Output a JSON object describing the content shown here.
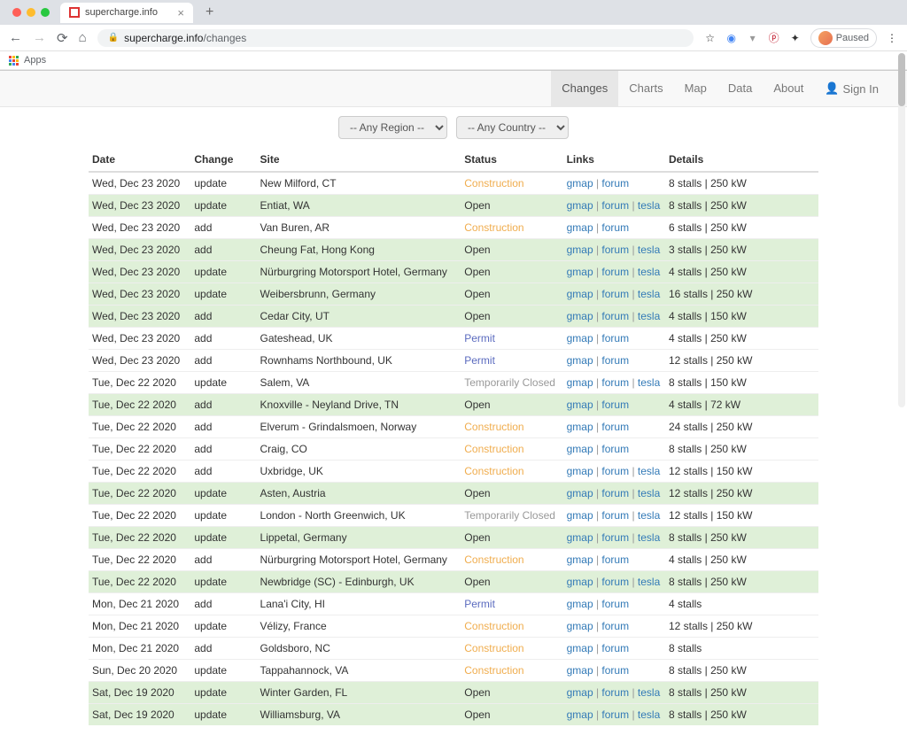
{
  "browser": {
    "tab_title": "supercharge.info",
    "url_host": "supercharge.info",
    "url_path": "/changes",
    "bookmarks_apps": "Apps",
    "paused_label": "Paused"
  },
  "nav": {
    "changes": "Changes",
    "charts": "Charts",
    "map": "Map",
    "data": "Data",
    "about": "About",
    "signin": "Sign In"
  },
  "filters": {
    "region_placeholder": "-- Any Region --",
    "country_placeholder": "-- Any Country --"
  },
  "columns": {
    "date": "Date",
    "change": "Change",
    "site": "Site",
    "status": "Status",
    "links": "Links",
    "details": "Details"
  },
  "link_labels": {
    "gmap": "gmap",
    "forum": "forum",
    "tesla": "tesla"
  },
  "rows": [
    {
      "hl": false,
      "date": "Wed, Dec 23 2020",
      "change": "update",
      "site": "New Milford, CT",
      "status": "Construction",
      "status_class": "construction",
      "links": [
        "gmap",
        "forum"
      ],
      "details": "8 stalls | 250 kW"
    },
    {
      "hl": true,
      "date": "Wed, Dec 23 2020",
      "change": "update",
      "site": "Entiat, WA",
      "status": "Open",
      "status_class": "open",
      "links": [
        "gmap",
        "forum",
        "tesla"
      ],
      "details": "8 stalls | 250 kW"
    },
    {
      "hl": false,
      "date": "Wed, Dec 23 2020",
      "change": "add",
      "site": "Van Buren, AR",
      "status": "Construction",
      "status_class": "construction",
      "links": [
        "gmap",
        "forum"
      ],
      "details": "6 stalls | 250 kW"
    },
    {
      "hl": true,
      "date": "Wed, Dec 23 2020",
      "change": "add",
      "site": "Cheung Fat, Hong Kong",
      "status": "Open",
      "status_class": "open",
      "links": [
        "gmap",
        "forum",
        "tesla"
      ],
      "details": "3 stalls | 250 kW"
    },
    {
      "hl": true,
      "date": "Wed, Dec 23 2020",
      "change": "update",
      "site": "Nürburgring Motorsport Hotel, Germany",
      "status": "Open",
      "status_class": "open",
      "links": [
        "gmap",
        "forum",
        "tesla"
      ],
      "details": "4 stalls | 250 kW"
    },
    {
      "hl": true,
      "date": "Wed, Dec 23 2020",
      "change": "update",
      "site": "Weibersbrunn, Germany",
      "status": "Open",
      "status_class": "open",
      "links": [
        "gmap",
        "forum",
        "tesla"
      ],
      "details": "16 stalls | 250 kW"
    },
    {
      "hl": true,
      "date": "Wed, Dec 23 2020",
      "change": "add",
      "site": "Cedar City, UT",
      "status": "Open",
      "status_class": "open",
      "links": [
        "gmap",
        "forum",
        "tesla"
      ],
      "details": "4 stalls | 150 kW"
    },
    {
      "hl": false,
      "date": "Wed, Dec 23 2020",
      "change": "add",
      "site": "Gateshead, UK",
      "status": "Permit",
      "status_class": "permit",
      "links": [
        "gmap",
        "forum"
      ],
      "details": "4 stalls | 250 kW"
    },
    {
      "hl": false,
      "date": "Wed, Dec 23 2020",
      "change": "add",
      "site": "Rownhams Northbound, UK",
      "status": "Permit",
      "status_class": "permit",
      "links": [
        "gmap",
        "forum"
      ],
      "details": "12 stalls | 250 kW"
    },
    {
      "hl": false,
      "date": "Tue, Dec 22 2020",
      "change": "update",
      "site": "Salem, VA",
      "status": "Temporarily Closed",
      "status_class": "tempclosed",
      "links": [
        "gmap",
        "forum",
        "tesla"
      ],
      "details": "8 stalls | 150 kW"
    },
    {
      "hl": true,
      "date": "Tue, Dec 22 2020",
      "change": "add",
      "site": "Knoxville - Neyland Drive, TN",
      "status": "Open",
      "status_class": "open",
      "links": [
        "gmap",
        "forum"
      ],
      "details": "4 stalls | 72 kW"
    },
    {
      "hl": false,
      "date": "Tue, Dec 22 2020",
      "change": "add",
      "site": "Elverum - Grindalsmoen, Norway",
      "status": "Construction",
      "status_class": "construction",
      "links": [
        "gmap",
        "forum"
      ],
      "details": "24 stalls | 250 kW"
    },
    {
      "hl": false,
      "date": "Tue, Dec 22 2020",
      "change": "add",
      "site": "Craig, CO",
      "status": "Construction",
      "status_class": "construction",
      "links": [
        "gmap",
        "forum"
      ],
      "details": "8 stalls | 250 kW"
    },
    {
      "hl": false,
      "date": "Tue, Dec 22 2020",
      "change": "add",
      "site": "Uxbridge, UK",
      "status": "Construction",
      "status_class": "construction",
      "links": [
        "gmap",
        "forum",
        "tesla"
      ],
      "details": "12 stalls | 150 kW"
    },
    {
      "hl": true,
      "date": "Tue, Dec 22 2020",
      "change": "update",
      "site": "Asten, Austria",
      "status": "Open",
      "status_class": "open",
      "links": [
        "gmap",
        "forum",
        "tesla"
      ],
      "details": "12 stalls | 250 kW"
    },
    {
      "hl": false,
      "date": "Tue, Dec 22 2020",
      "change": "update",
      "site": "London - North Greenwich, UK",
      "status": "Temporarily Closed",
      "status_class": "tempclosed",
      "links": [
        "gmap",
        "forum",
        "tesla"
      ],
      "details": "12 stalls | 150 kW"
    },
    {
      "hl": true,
      "date": "Tue, Dec 22 2020",
      "change": "update",
      "site": "Lippetal, Germany",
      "status": "Open",
      "status_class": "open",
      "links": [
        "gmap",
        "forum",
        "tesla"
      ],
      "details": "8 stalls | 250 kW"
    },
    {
      "hl": false,
      "date": "Tue, Dec 22 2020",
      "change": "add",
      "site": "Nürburgring Motorsport Hotel, Germany",
      "status": "Construction",
      "status_class": "construction",
      "links": [
        "gmap",
        "forum"
      ],
      "details": "4 stalls | 250 kW"
    },
    {
      "hl": true,
      "date": "Tue, Dec 22 2020",
      "change": "update",
      "site": "Newbridge (SC) - Edinburgh, UK",
      "status": "Open",
      "status_class": "open",
      "links": [
        "gmap",
        "forum",
        "tesla"
      ],
      "details": "8 stalls | 250 kW"
    },
    {
      "hl": false,
      "date": "Mon, Dec 21 2020",
      "change": "add",
      "site": "Lana'i City, HI",
      "status": "Permit",
      "status_class": "permit",
      "links": [
        "gmap",
        "forum"
      ],
      "details": "4 stalls"
    },
    {
      "hl": false,
      "date": "Mon, Dec 21 2020",
      "change": "update",
      "site": "Vélizy, France",
      "status": "Construction",
      "status_class": "construction",
      "links": [
        "gmap",
        "forum"
      ],
      "details": "12 stalls | 250 kW"
    },
    {
      "hl": false,
      "date": "Mon, Dec 21 2020",
      "change": "add",
      "site": "Goldsboro, NC",
      "status": "Construction",
      "status_class": "construction",
      "links": [
        "gmap",
        "forum"
      ],
      "details": "8 stalls"
    },
    {
      "hl": false,
      "date": "Sun, Dec 20 2020",
      "change": "update",
      "site": "Tappahannock, VA",
      "status": "Construction",
      "status_class": "construction",
      "links": [
        "gmap",
        "forum"
      ],
      "details": "8 stalls | 250 kW"
    },
    {
      "hl": true,
      "date": "Sat, Dec 19 2020",
      "change": "update",
      "site": "Winter Garden, FL",
      "status": "Open",
      "status_class": "open",
      "links": [
        "gmap",
        "forum",
        "tesla"
      ],
      "details": "8 stalls | 250 kW"
    },
    {
      "hl": true,
      "date": "Sat, Dec 19 2020",
      "change": "update",
      "site": "Williamsburg, VA",
      "status": "Open",
      "status_class": "open",
      "links": [
        "gmap",
        "forum",
        "tesla"
      ],
      "details": "8 stalls | 250 kW"
    }
  ]
}
